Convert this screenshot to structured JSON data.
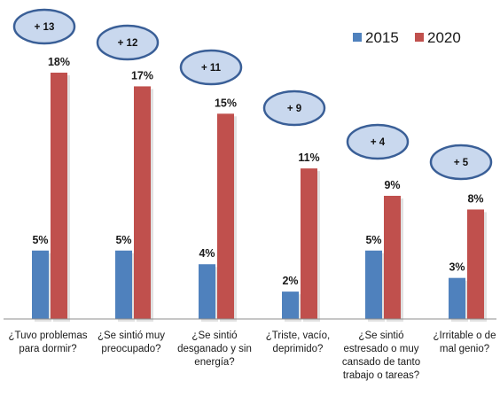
{
  "chart_data": {
    "type": "bar",
    "categories": [
      [
        "¿Tuvo problemas",
        "para dormir?"
      ],
      [
        "¿Se sintió muy",
        "preocupado?"
      ],
      [
        "¿Se sintió",
        "desganado y sin",
        "energía?"
      ],
      [
        "¿Triste, vacío,",
        "deprimido?"
      ],
      [
        "¿Se sintió",
        "estresado o muy",
        "cansado de tanto",
        "trabajo o tareas?"
      ],
      [
        "¿Irritable o de",
        "mal genio?"
      ]
    ],
    "series": [
      {
        "name": "2015",
        "values": [
          5,
          5,
          4,
          2,
          5,
          3
        ],
        "color": "#4f81bd"
      },
      {
        "name": "2020",
        "values": [
          18,
          17,
          15,
          11,
          9,
          8
        ],
        "color": "#c0504d"
      }
    ],
    "value_labels": {
      "2015": [
        "5%",
        "5%",
        "4%",
        "2%",
        "5%",
        "3%"
      ],
      "2020": [
        "18%",
        "17%",
        "15%",
        "11%",
        "9%",
        "8%"
      ]
    },
    "differences": [
      "+ 13",
      "+ 12",
      "+ 11",
      "+ 9",
      "+ 4",
      "+ 5"
    ],
    "ylim": [
      0,
      18
    ],
    "legend": "top-right",
    "grid": false,
    "bubble_color": "#c9d8ee",
    "bubble_border": "#3a5f97"
  }
}
